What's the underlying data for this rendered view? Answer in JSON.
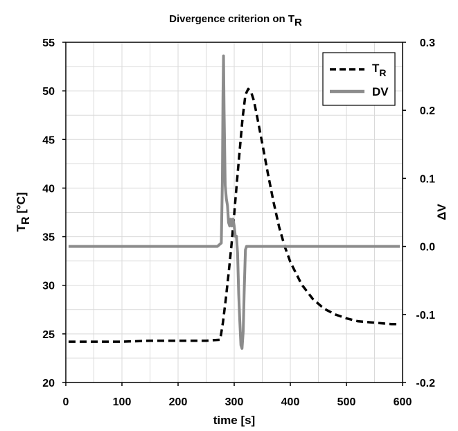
{
  "chart_data": {
    "type": "line",
    "title": {
      "text": "Divergence criterion on T",
      "subscript": "R"
    },
    "xlabel": "time [s]",
    "ylabel_left": {
      "text": "T",
      "subscript": "R",
      "suffix": " [°C]"
    },
    "ylabel_right": "ΔV",
    "xlim": [
      0,
      600
    ],
    "ylim_left": [
      20,
      55
    ],
    "ylim_right": [
      -0.2,
      0.3
    ],
    "x_ticks": [
      "0",
      "100",
      "200",
      "300",
      "400",
      "500",
      "600"
    ],
    "x_tick_values": [
      0,
      100,
      200,
      300,
      400,
      500,
      600
    ],
    "y_left_ticks": [
      "20",
      "25",
      "30",
      "35",
      "40",
      "45",
      "50",
      "55"
    ],
    "y_left_tick_values": [
      20,
      25,
      30,
      35,
      40,
      45,
      50,
      55
    ],
    "y_right_ticks": [
      "-0.2",
      "-0.1",
      "0.0",
      "0.1",
      "0.2",
      "0.3"
    ],
    "y_right_tick_values": [
      -0.2,
      -0.1,
      0.0,
      0.1,
      0.2,
      0.3
    ],
    "grid": true,
    "legend_position": "top-right",
    "series": [
      {
        "name": "T",
        "name_subscript": "R",
        "axis": "left",
        "style": "dashed",
        "color": "#000000",
        "x": [
          5,
          50,
          100,
          150,
          200,
          250,
          275,
          280,
          285,
          290,
          295,
          300,
          305,
          310,
          315,
          320,
          325,
          330,
          335,
          340,
          350,
          360,
          370,
          380,
          390,
          400,
          420,
          440,
          460,
          480,
          500,
          520,
          540,
          560,
          580,
          595
        ],
        "y": [
          24.2,
          24.2,
          24.2,
          24.3,
          24.3,
          24.3,
          24.4,
          26.2,
          28.6,
          31.2,
          34.0,
          37.3,
          40.7,
          44.0,
          47.2,
          49.6,
          50.2,
          49.9,
          49.0,
          47.6,
          44.6,
          41.5,
          38.6,
          36.0,
          34.0,
          32.4,
          30.1,
          28.6,
          27.6,
          27.0,
          26.6,
          26.3,
          26.2,
          26.1,
          26.0,
          26.0
        ]
      },
      {
        "name": "DV",
        "axis": "right",
        "style": "solid",
        "color": "#8c8c8c",
        "x": [
          5,
          100,
          200,
          270,
          277,
          279,
          280,
          281,
          282,
          284,
          286,
          288,
          290,
          292,
          294,
          296,
          298,
          300,
          302,
          304,
          306,
          308,
          310,
          312,
          314,
          316,
          318,
          320,
          322,
          325,
          400,
          500,
          595
        ],
        "y": [
          0.0,
          0.0,
          0.0,
          0.0,
          0.005,
          0.1,
          0.22,
          0.28,
          0.2,
          0.09,
          0.07,
          0.06,
          0.035,
          0.03,
          0.04,
          0.03,
          0.04,
          0.03,
          0.015,
          0.015,
          -0.01,
          -0.07,
          -0.11,
          -0.145,
          -0.15,
          -0.125,
          -0.06,
          -0.005,
          0.0,
          0.0,
          0.0,
          0.0,
          0.0
        ]
      }
    ]
  }
}
